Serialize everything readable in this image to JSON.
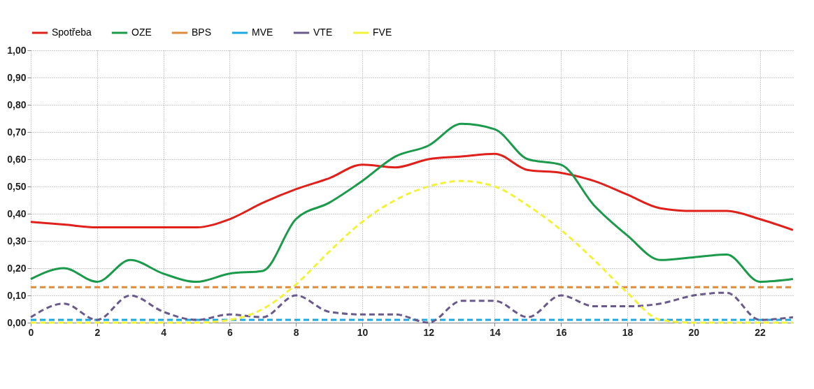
{
  "chart_data": {
    "type": "line",
    "x": [
      0,
      1,
      2,
      3,
      4,
      5,
      6,
      7,
      8,
      9,
      10,
      11,
      12,
      13,
      14,
      15,
      16,
      17,
      18,
      19,
      20,
      21,
      22,
      23
    ],
    "xlim": [
      0,
      23
    ],
    "xticks": [
      0,
      2,
      4,
      6,
      8,
      10,
      12,
      14,
      16,
      18,
      20,
      22
    ],
    "ylim": [
      0,
      1
    ],
    "yticks": [
      {
        "value": 0,
        "label": "0,00"
      },
      {
        "value": 0.1,
        "label": "0,10"
      },
      {
        "value": 0.2,
        "label": "0,20"
      },
      {
        "value": 0.3,
        "label": "0,30"
      },
      {
        "value": 0.4,
        "label": "0,40"
      },
      {
        "value": 0.5,
        "label": "0,50"
      },
      {
        "value": 0.6,
        "label": "0,60"
      },
      {
        "value": 0.7,
        "label": "0,70"
      },
      {
        "value": 0.8,
        "label": "0,80"
      },
      {
        "value": 0.9,
        "label": "0,90"
      },
      {
        "value": 1,
        "label": "1,00"
      }
    ],
    "grid": true,
    "legend": "top",
    "marker": "none",
    "series": [
      {
        "name": "Spotřeba",
        "color": "#e0201b",
        "line_style": "solid",
        "values": [
          0.37,
          0.36,
          0.35,
          0.35,
          0.35,
          0.35,
          0.38,
          0.44,
          0.49,
          0.53,
          0.58,
          0.57,
          0.6,
          0.61,
          0.62,
          0.56,
          0.55,
          0.52,
          0.47,
          0.42,
          0.41,
          0.41,
          0.38,
          0.34
        ]
      },
      {
        "name": "OZE",
        "color": "#1a9a4a",
        "line_style": "solid",
        "values": [
          0.16,
          0.2,
          0.15,
          0.23,
          0.18,
          0.15,
          0.18,
          0.19,
          0.38,
          0.44,
          0.52,
          0.61,
          0.65,
          0.73,
          0.71,
          0.6,
          0.58,
          0.43,
          0.32,
          0.23,
          0.24,
          0.25,
          0.15,
          0.16
        ]
      },
      {
        "name": "BPS",
        "color": "#e08a3c",
        "line_style": "dashed",
        "values": [
          0.13,
          0.13,
          0.13,
          0.13,
          0.13,
          0.13,
          0.13,
          0.13,
          0.13,
          0.13,
          0.13,
          0.13,
          0.13,
          0.13,
          0.13,
          0.13,
          0.13,
          0.13,
          0.13,
          0.13,
          0.13,
          0.13,
          0.13,
          0.13
        ]
      },
      {
        "name": "MVE",
        "color": "#1ea8e0",
        "line_style": "dashed",
        "values": [
          0.01,
          0.01,
          0.01,
          0.01,
          0.01,
          0.01,
          0.01,
          0.01,
          0.01,
          0.01,
          0.01,
          0.01,
          0.01,
          0.01,
          0.01,
          0.01,
          0.01,
          0.01,
          0.01,
          0.01,
          0.01,
          0.01,
          0.01,
          0.01
        ]
      },
      {
        "name": "VTE",
        "color": "#6a5a8c",
        "line_style": "dashed",
        "values": [
          0.02,
          0.07,
          0.01,
          0.1,
          0.04,
          0.01,
          0.03,
          0.02,
          0.1,
          0.04,
          0.03,
          0.03,
          0.0,
          0.08,
          0.08,
          0.02,
          0.1,
          0.06,
          0.06,
          0.07,
          0.1,
          0.11,
          0.01,
          0.02
        ]
      },
      {
        "name": "FVE",
        "color": "#f2f23a",
        "line_style": "dashed",
        "values": [
          0,
          0,
          0,
          0,
          0,
          0,
          0.01,
          0.05,
          0.14,
          0.26,
          0.37,
          0.45,
          0.5,
          0.52,
          0.5,
          0.43,
          0.34,
          0.23,
          0.11,
          0.01,
          0,
          0,
          0,
          0
        ]
      }
    ]
  }
}
